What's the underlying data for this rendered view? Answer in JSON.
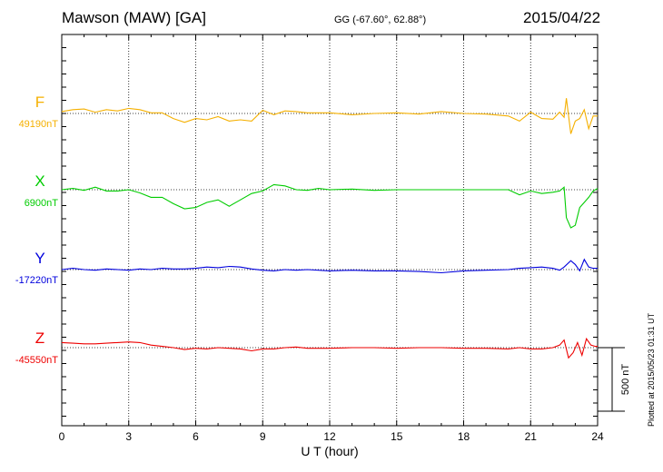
{
  "header": {
    "station": "Mawson (MAW)  [GA]",
    "coordinates": "GG (-67.60°,  62.88°)",
    "date": "2015/04/22"
  },
  "plotted_note": "Plotted at 2015/05/23 01:31  UT",
  "chart_data": {
    "type": "line",
    "xlabel": "U T (hour)",
    "xlim": [
      0,
      24
    ],
    "xticks": [
      0,
      3,
      6,
      9,
      12,
      15,
      18,
      21,
      24
    ],
    "scale_bar": {
      "label": "500 nT",
      "value_nT": 500
    },
    "grid": "dotted vertical lines every 3 hours",
    "series": [
      {
        "name": "F",
        "baseline_label": "49190nT",
        "baseline_nT": 49190,
        "color": "#f5b000",
        "points": [
          [
            0,
            -15
          ],
          [
            0.5,
            -30
          ],
          [
            1,
            -35
          ],
          [
            1.5,
            -10
          ],
          [
            2,
            -30
          ],
          [
            2.5,
            -20
          ],
          [
            3,
            -40
          ],
          [
            3.5,
            -30
          ],
          [
            4,
            -5
          ],
          [
            4.5,
            -5
          ],
          [
            5,
            40
          ],
          [
            5.5,
            70
          ],
          [
            6,
            40
          ],
          [
            6.5,
            50
          ],
          [
            7,
            25
          ],
          [
            7.5,
            60
          ],
          [
            8,
            50
          ],
          [
            8.5,
            60
          ],
          [
            9,
            -25
          ],
          [
            9.5,
            10
          ],
          [
            10,
            -20
          ],
          [
            10.5,
            -15
          ],
          [
            11,
            -5
          ],
          [
            12,
            -5
          ],
          [
            13,
            10
          ],
          [
            14,
            0
          ],
          [
            15,
            -5
          ],
          [
            16,
            5
          ],
          [
            17,
            -15
          ],
          [
            18,
            0
          ],
          [
            19,
            5
          ],
          [
            20,
            20
          ],
          [
            20.5,
            60
          ],
          [
            21,
            -10
          ],
          [
            21.5,
            40
          ],
          [
            22,
            45
          ],
          [
            22.3,
            -10
          ],
          [
            22.5,
            30
          ],
          [
            22.6,
            -120
          ],
          [
            22.8,
            160
          ],
          [
            23,
            60
          ],
          [
            23.2,
            40
          ],
          [
            23.4,
            -30
          ],
          [
            23.6,
            120
          ],
          [
            23.8,
            20
          ],
          [
            24,
            20
          ]
        ]
      },
      {
        "name": "X",
        "baseline_label": "6900nT",
        "baseline_nT": 6900,
        "color": "#00cc00",
        "points": [
          [
            0,
            0
          ],
          [
            0.5,
            -10
          ],
          [
            1,
            5
          ],
          [
            1.5,
            -20
          ],
          [
            2,
            10
          ],
          [
            2.5,
            10
          ],
          [
            3,
            0
          ],
          [
            3.5,
            25
          ],
          [
            4,
            60
          ],
          [
            4.5,
            60
          ],
          [
            5,
            110
          ],
          [
            5.5,
            150
          ],
          [
            6,
            140
          ],
          [
            6.5,
            100
          ],
          [
            7,
            80
          ],
          [
            7.5,
            130
          ],
          [
            8,
            80
          ],
          [
            8.5,
            30
          ],
          [
            9,
            10
          ],
          [
            9.5,
            -40
          ],
          [
            10,
            -30
          ],
          [
            10.5,
            0
          ],
          [
            11,
            5
          ],
          [
            11.5,
            -10
          ],
          [
            12,
            0
          ],
          [
            13,
            -5
          ],
          [
            14,
            5
          ],
          [
            15,
            0
          ],
          [
            16,
            0
          ],
          [
            17,
            0
          ],
          [
            18,
            0
          ],
          [
            19,
            0
          ],
          [
            20,
            0
          ],
          [
            20.5,
            40
          ],
          [
            21,
            10
          ],
          [
            21.5,
            30
          ],
          [
            22,
            20
          ],
          [
            22.3,
            10
          ],
          [
            22.5,
            -20
          ],
          [
            22.6,
            220
          ],
          [
            22.8,
            300
          ],
          [
            23,
            280
          ],
          [
            23.2,
            140
          ],
          [
            23.4,
            100
          ],
          [
            23.6,
            60
          ],
          [
            23.8,
            10
          ],
          [
            24,
            -10
          ]
        ]
      },
      {
        "name": "Y",
        "baseline_label": "-17220nT",
        "baseline_nT": -17220,
        "color": "#0000dd",
        "points": [
          [
            0,
            0
          ],
          [
            0.5,
            -10
          ],
          [
            1,
            0
          ],
          [
            1.5,
            5
          ],
          [
            2,
            -5
          ],
          [
            2.5,
            0
          ],
          [
            3,
            5
          ],
          [
            3.5,
            -5
          ],
          [
            4,
            0
          ],
          [
            4.5,
            -10
          ],
          [
            5,
            -5
          ],
          [
            5.5,
            -5
          ],
          [
            6,
            -10
          ],
          [
            6.5,
            -20
          ],
          [
            7,
            -15
          ],
          [
            7.5,
            -25
          ],
          [
            8,
            -20
          ],
          [
            8.5,
            -5
          ],
          [
            9,
            5
          ],
          [
            9.5,
            10
          ],
          [
            10,
            0
          ],
          [
            10.5,
            5
          ],
          [
            11,
            0
          ],
          [
            12,
            10
          ],
          [
            13,
            5
          ],
          [
            14,
            10
          ],
          [
            15,
            10
          ],
          [
            16,
            15
          ],
          [
            17,
            25
          ],
          [
            18,
            10
          ],
          [
            19,
            5
          ],
          [
            20,
            0
          ],
          [
            20.5,
            -10
          ],
          [
            21,
            -15
          ],
          [
            21.5,
            -20
          ],
          [
            22,
            -10
          ],
          [
            22.3,
            5
          ],
          [
            22.5,
            -20
          ],
          [
            22.8,
            -70
          ],
          [
            23,
            -40
          ],
          [
            23.2,
            10
          ],
          [
            23.4,
            -80
          ],
          [
            23.6,
            -20
          ],
          [
            23.8,
            -10
          ],
          [
            24,
            -10
          ]
        ]
      },
      {
        "name": "Z",
        "baseline_label": "-45550nT",
        "baseline_nT": -45550,
        "color": "#ee0000",
        "points": [
          [
            0,
            -40
          ],
          [
            0.5,
            -35
          ],
          [
            1,
            -30
          ],
          [
            1.5,
            -30
          ],
          [
            2,
            -35
          ],
          [
            2.5,
            -40
          ],
          [
            3,
            -45
          ],
          [
            3.5,
            -40
          ],
          [
            4,
            -20
          ],
          [
            4.5,
            -10
          ],
          [
            5,
            0
          ],
          [
            5.5,
            15
          ],
          [
            6,
            5
          ],
          [
            6.5,
            10
          ],
          [
            7,
            0
          ],
          [
            7.5,
            5
          ],
          [
            8,
            10
          ],
          [
            8.5,
            25
          ],
          [
            9,
            10
          ],
          [
            9.5,
            10
          ],
          [
            10,
            0
          ],
          [
            10.5,
            -5
          ],
          [
            11,
            5
          ],
          [
            12,
            5
          ],
          [
            13,
            0
          ],
          [
            14,
            0
          ],
          [
            15,
            5
          ],
          [
            16,
            0
          ],
          [
            17,
            0
          ],
          [
            18,
            5
          ],
          [
            19,
            5
          ],
          [
            20,
            10
          ],
          [
            20.5,
            0
          ],
          [
            21,
            10
          ],
          [
            21.5,
            10
          ],
          [
            22,
            0
          ],
          [
            22.3,
            -20
          ],
          [
            22.5,
            -60
          ],
          [
            22.7,
            80
          ],
          [
            22.9,
            40
          ],
          [
            23.1,
            -40
          ],
          [
            23.3,
            60
          ],
          [
            23.5,
            -70
          ],
          [
            23.7,
            -20
          ],
          [
            23.9,
            -10
          ],
          [
            24,
            -10
          ]
        ]
      }
    ]
  }
}
